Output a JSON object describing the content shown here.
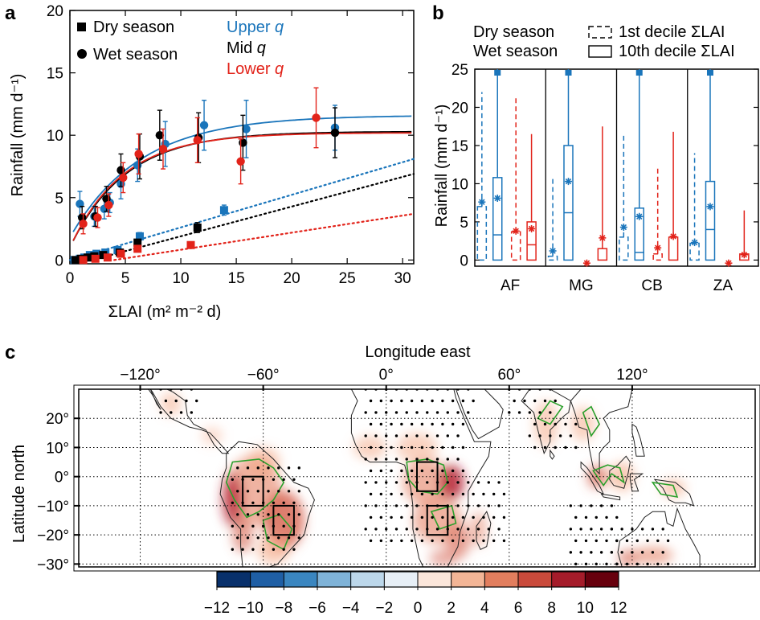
{
  "colors": {
    "dry": "#d9232b",
    "wet": "#1f77b4",
    "blue": "#1a75bb",
    "red": "#e2231a",
    "green": "#2ca02c",
    "black": "#000000"
  },
  "chart_data": [
    {
      "panel": "a",
      "type": "scatter",
      "xlabel": "ΣLAI (m² m⁻² d)",
      "ylabel": "Rainfall (mm d⁻¹)",
      "xlim": [
        0,
        31
      ],
      "ylim": [
        -0.3,
        20
      ],
      "xticks": [
        0,
        5,
        10,
        15,
        20,
        25,
        30
      ],
      "yticks": [
        0,
        5,
        10,
        15,
        20
      ],
      "legend_markers": [
        {
          "marker": "square",
          "label": "Dry season"
        },
        {
          "marker": "circle",
          "label": "Wet season"
        }
      ],
      "legend_quantiles": [
        {
          "label": "Upper",
          "q": "q",
          "color": "#1a75bb"
        },
        {
          "label": "Mid",
          "q": "q",
          "color": "#000000"
        },
        {
          "label": "Lower",
          "q": "q",
          "color": "#e2231a"
        }
      ],
      "series": [
        {
          "name": "Wet season, upper q",
          "marker": "circle",
          "color": "#1a75bb",
          "x": [
            0.9,
            2.2,
            3.1,
            3.6,
            4.6,
            6.1,
            8.6,
            12.1,
            15.9,
            23.9
          ],
          "y": [
            4.5,
            3.5,
            4.1,
            4.6,
            6.1,
            7.6,
            9.3,
            10.8,
            10.5,
            10.6
          ],
          "err": [
            1.0,
            0.8,
            0.8,
            0.8,
            1.2,
            1.3,
            1.8,
            2.0,
            2.3,
            1.8
          ],
          "fit": {
            "style": "solid",
            "a": 11.6,
            "k": 0.16,
            "b": 1.8
          }
        },
        {
          "name": "Wet season, mid q",
          "marker": "circle",
          "color": "#000000",
          "x": [
            1.1,
            2.3,
            3.3,
            4.6,
            6.3,
            8.1,
            11.6,
            15.6,
            23.9
          ],
          "y": [
            3.4,
            3.5,
            4.9,
            7.2,
            8.3,
            10.0,
            9.8,
            9.4,
            10.2
          ],
          "err": [
            0.9,
            0.8,
            1.0,
            1.3,
            1.8,
            2.0,
            2.0,
            2.2,
            2.0
          ],
          "fit": {
            "style": "solid",
            "a": 10.3,
            "k": 0.2,
            "b": 1.0
          }
        },
        {
          "name": "Wet season, lower q",
          "marker": "circle",
          "color": "#e2231a",
          "x": [
            1.2,
            2.5,
            3.5,
            4.8,
            6.2,
            8.4,
            11.5,
            15.4,
            22.2
          ],
          "y": [
            2.9,
            3.4,
            4.4,
            6.6,
            8.5,
            8.9,
            9.6,
            7.9,
            11.4
          ],
          "err": [
            0.8,
            0.8,
            0.9,
            1.2,
            1.6,
            1.6,
            1.8,
            1.8,
            2.4
          ],
          "fit": {
            "style": "solid",
            "a": 10.2,
            "k": 0.21,
            "b": 1.0
          }
        },
        {
          "name": "Dry season, upper q",
          "marker": "square",
          "color": "#1a75bb",
          "x": [
            0.4,
            0.9,
            1.3,
            1.8,
            2.4,
            3.2,
            4.3,
            6.3,
            13.9
          ],
          "y": [
            0.0,
            0.1,
            0.2,
            0.4,
            0.5,
            0.6,
            0.8,
            1.9,
            4.0
          ],
          "err": [
            0,
            0,
            0,
            0.1,
            0.1,
            0.2,
            0.2,
            0.3,
            0.4
          ],
          "fit": {
            "style": "dotted",
            "x0": 0,
            "y0": 0,
            "x1": 31,
            "y1": 8.1
          }
        },
        {
          "name": "Dry season, mid q",
          "marker": "square",
          "color": "#000000",
          "x": [
            0.5,
            1.0,
            1.6,
            2.2,
            3.0,
            4.5,
            6.1,
            11.5
          ],
          "y": [
            0.0,
            0.1,
            0.2,
            0.3,
            0.4,
            0.6,
            1.4,
            2.6
          ],
          "err": [
            0,
            0,
            0,
            0,
            0.1,
            0.2,
            0.2,
            0.4
          ],
          "fit": {
            "style": "dotted",
            "x0": 2,
            "y0": 0,
            "x1": 31,
            "y1": 6.9
          }
        },
        {
          "name": "Dry season, lower q",
          "marker": "square",
          "color": "#e2231a",
          "x": [
            1.2,
            2.3,
            3.4,
            4.6,
            6.1,
            10.9
          ],
          "y": [
            0.0,
            0.1,
            0.2,
            0.5,
            0.9,
            1.2
          ],
          "err": [
            0,
            0,
            0,
            0.1,
            0.1,
            0.2
          ],
          "fit": {
            "style": "dotted",
            "x0": 4,
            "y0": 0,
            "x1": 31,
            "y1": 3.7
          }
        }
      ]
    },
    {
      "panel": "b",
      "type": "box",
      "ylabel": "Rainfall (mm d⁻¹)",
      "ylim": [
        -0.8,
        25
      ],
      "yticks": [
        0,
        5,
        10,
        15,
        20,
        25
      ],
      "categories": [
        "AF",
        "MG",
        "CB",
        "ZA"
      ],
      "legend_season": [
        {
          "label": "Dry season",
          "color": "#e2231a"
        },
        {
          "label": "Wet season",
          "color": "#1a75bb"
        }
      ],
      "legend_decile": [
        {
          "label": "1st decile ΣLAI",
          "style": "dashed"
        },
        {
          "label": "10th decile ΣLAI",
          "style": "solid"
        }
      ],
      "boxes": [
        {
          "cat": "AF",
          "season": "wet",
          "decile": "1st",
          "lo": 0,
          "q1": 0,
          "med": 0,
          "q3": 7,
          "hi": 22,
          "mean": 7.6
        },
        {
          "cat": "AF",
          "season": "wet",
          "decile": "10th",
          "lo": 0,
          "q1": 0,
          "med": 3.3,
          "q3": 10.8,
          "hi": 26,
          "mean": 8.1
        },
        {
          "cat": "AF",
          "season": "dry",
          "decile": "1st",
          "lo": 0,
          "q1": 0,
          "med": 0,
          "q3": 3.7,
          "hi": 21.5,
          "mean": 3.8
        },
        {
          "cat": "AF",
          "season": "dry",
          "decile": "10th",
          "lo": 0,
          "q1": 0,
          "med": 2.0,
          "q3": 5.0,
          "hi": 16.5,
          "mean": 4.1
        },
        {
          "cat": "MG",
          "season": "wet",
          "decile": "1st",
          "lo": 0,
          "q1": 0,
          "med": 0,
          "q3": 0.5,
          "hi": 11,
          "mean": 1.2
        },
        {
          "cat": "MG",
          "season": "wet",
          "decile": "10th",
          "lo": 0,
          "q1": 0,
          "med": 6.2,
          "q3": 15,
          "hi": 26,
          "mean": 10.3
        },
        {
          "cat": "MG",
          "season": "dry",
          "decile": "1st",
          "lo": 0,
          "q1": 0,
          "med": 0,
          "q3": 0,
          "hi": 0,
          "mean": -0.4
        },
        {
          "cat": "MG",
          "season": "dry",
          "decile": "10th",
          "lo": 0,
          "q1": 0,
          "med": 0,
          "q3": 1.5,
          "hi": 17.5,
          "mean": 2.9
        },
        {
          "cat": "CB",
          "season": "wet",
          "decile": "1st",
          "lo": 0,
          "q1": 0,
          "med": 0,
          "q3": 3.0,
          "hi": 16.5,
          "mean": 4.3
        },
        {
          "cat": "CB",
          "season": "wet",
          "decile": "10th",
          "lo": 0,
          "q1": 0,
          "med": 1.0,
          "q3": 6.8,
          "hi": 26,
          "mean": 5.7
        },
        {
          "cat": "CB",
          "season": "dry",
          "decile": "1st",
          "lo": 0,
          "q1": 0,
          "med": 0,
          "q3": 0.8,
          "hi": 12,
          "mean": 1.6
        },
        {
          "cat": "CB",
          "season": "dry",
          "decile": "10th",
          "lo": 0,
          "q1": 0,
          "med": 0,
          "q3": 3.0,
          "hi": 16.8,
          "mean": 3.1
        },
        {
          "cat": "ZA",
          "season": "wet",
          "decile": "1st",
          "lo": 0,
          "q1": 0,
          "med": 0,
          "q3": 2.2,
          "hi": 14,
          "mean": 2.3
        },
        {
          "cat": "ZA",
          "season": "wet",
          "decile": "10th",
          "lo": 0,
          "q1": 0,
          "med": 4.0,
          "q3": 10.3,
          "hi": 26,
          "mean": 7.0
        },
        {
          "cat": "ZA",
          "season": "dry",
          "decile": "1st",
          "lo": 0,
          "q1": 0,
          "med": 0,
          "q3": 0,
          "hi": 0,
          "mean": -0.4
        },
        {
          "cat": "ZA",
          "season": "dry",
          "decile": "10th",
          "lo": 0,
          "q1": 0,
          "med": 0,
          "q3": 0.8,
          "hi": 6.5,
          "mean": 0.7
        }
      ]
    },
    {
      "panel": "c",
      "type": "heatmap",
      "xlabel": "Longitude east",
      "ylabel": "Latitude north",
      "xticks": [
        -120,
        -60,
        0,
        60,
        120
      ],
      "xtick_labels": [
        "−120°",
        "−60°",
        "0°",
        "60°",
        "120°"
      ],
      "yticks": [
        20,
        10,
        0,
        -10,
        -20,
        -30
      ],
      "ytick_labels": [
        "20°",
        "10°",
        "0°",
        "−10°",
        "−20°",
        "−30°"
      ],
      "xlim": [
        -150,
        180
      ],
      "ylim": [
        -31,
        30
      ],
      "colorbar_ticks": [
        -12,
        -10,
        -8,
        -6,
        -4,
        -2,
        0,
        2,
        4,
        6,
        8,
        10,
        12
      ],
      "colorbar_labels": [
        "−12",
        "−10",
        "−8",
        "−6",
        "−4",
        "−2",
        "0",
        "2",
        "4",
        "6",
        "8",
        "10",
        "12"
      ],
      "colorbar_colors": [
        "#08306b",
        "#1f5fa5",
        "#3a86c0",
        "#7fb3d8",
        "#bcd7ea",
        "#e7eff6",
        "#fbe6da",
        "#f3b596",
        "#e27e5e",
        "#c94a3b",
        "#a51c2a",
        "#67000d"
      ],
      "boxes_lonlat": [
        {
          "lon0": -70,
          "lon1": -60,
          "lat0": -10,
          "lat1": 0
        },
        {
          "lon0": -55,
          "lon1": -45,
          "lat0": -20,
          "lat1": -10
        },
        {
          "lon0": 15,
          "lon1": 25,
          "lat0": -5,
          "lat1": 5
        },
        {
          "lon0": 20,
          "lon1": 30,
          "lat0": -20,
          "lat1": -10
        }
      ]
    }
  ]
}
